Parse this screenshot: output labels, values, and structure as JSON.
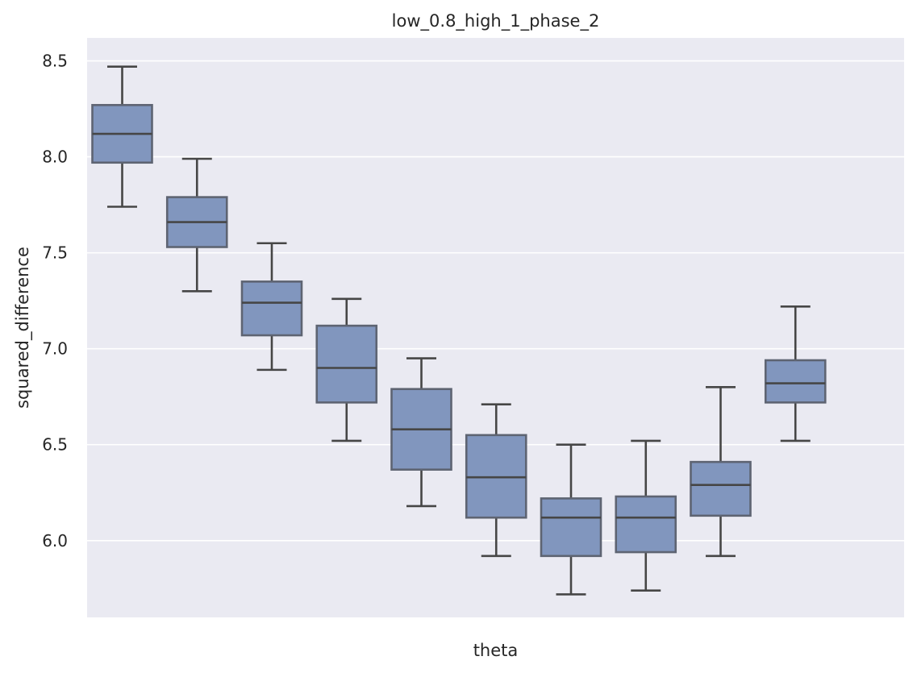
{
  "chart_data": {
    "type": "box",
    "title": "low_0.8_high_1_phase_2",
    "xlabel": "theta",
    "ylabel": "squared_difference",
    "ylim": [
      5.6,
      8.62
    ],
    "yticks": [
      6.0,
      6.5,
      7.0,
      7.5,
      8.0,
      8.5
    ],
    "ytick_labels": [
      "6.0",
      "6.5",
      "7.0",
      "7.5",
      "8.0",
      "8.5"
    ],
    "grid": true,
    "box_color": "#8196be",
    "line_color": "#464646",
    "background_color": "#eaeaf2",
    "series": [
      {
        "min": 7.74,
        "q1": 7.97,
        "median": 8.12,
        "q3": 8.27,
        "max": 8.47
      },
      {
        "min": 7.3,
        "q1": 7.53,
        "median": 7.66,
        "q3": 7.79,
        "max": 7.99
      },
      {
        "min": 6.89,
        "q1": 7.07,
        "median": 7.24,
        "q3": 7.35,
        "max": 7.55
      },
      {
        "min": 6.52,
        "q1": 6.72,
        "median": 6.9,
        "q3": 7.12,
        "max": 7.26
      },
      {
        "min": 6.18,
        "q1": 6.37,
        "median": 6.58,
        "q3": 6.79,
        "max": 6.95
      },
      {
        "min": 5.92,
        "q1": 6.12,
        "median": 6.33,
        "q3": 6.55,
        "max": 6.71
      },
      {
        "min": 5.72,
        "q1": 5.92,
        "median": 6.12,
        "q3": 6.22,
        "max": 6.5
      },
      {
        "min": 5.74,
        "q1": 5.94,
        "median": 6.12,
        "q3": 6.23,
        "max": 6.52
      },
      {
        "min": 5.92,
        "q1": 6.13,
        "median": 6.29,
        "q3": 6.41,
        "max": 6.8
      },
      {
        "min": 6.52,
        "q1": 6.72,
        "median": 6.82,
        "q3": 6.94,
        "max": 7.22
      }
    ]
  }
}
